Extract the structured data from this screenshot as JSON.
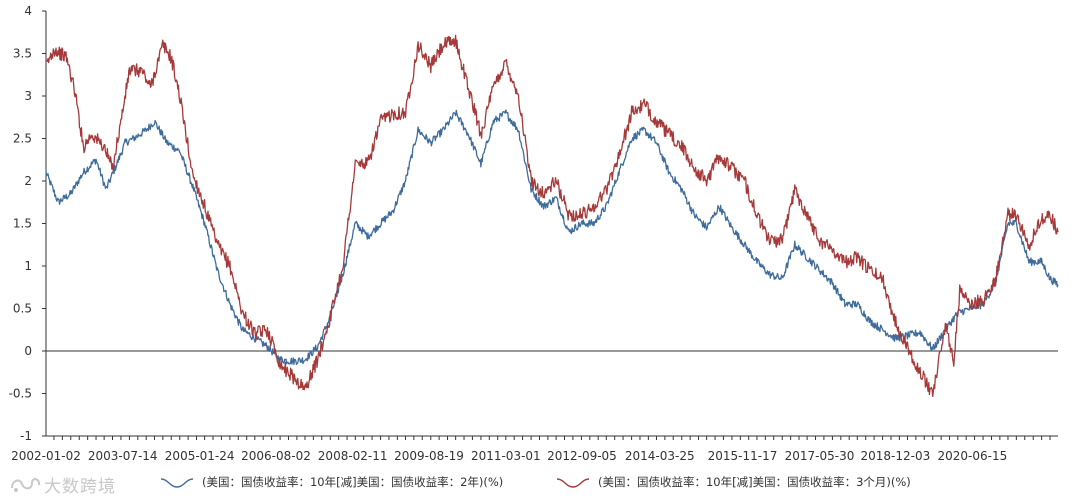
{
  "chart_data": {
    "type": "line",
    "title": "",
    "xlabel": "",
    "ylabel": "",
    "ylim": [
      -1,
      4
    ],
    "yticks": [
      -1,
      -0.5,
      0,
      0.5,
      1,
      1.5,
      2,
      2.5,
      3,
      3.5,
      4
    ],
    "ytick_labels": [
      "-1",
      "-0.5",
      "0",
      "0.5",
      "1",
      "1.5",
      "2",
      "2.5",
      "3",
      "3.5",
      "4"
    ],
    "xlim": [
      "2002-01-02",
      "2022-02-28"
    ],
    "x_tick_labels": [
      "2002-01-02",
      "2003-07-14",
      "2005-01-24",
      "2006-08-02",
      "2008-02-11",
      "2009-08-19",
      "2011-03-01",
      "2012-09-05",
      "2014-03-25",
      "2015-11-17",
      "2017-05-30",
      "2018-12-03",
      "2020-06-15"
    ],
    "zero_line": true,
    "series": [
      {
        "name": "(美国：国债收益率：10年[减]美国：国债收益率：2年)(%)",
        "color": "#3e6c9c",
        "points": [
          [
            "2002-01-02",
            2.1
          ],
          [
            "2002-04-01",
            1.75
          ],
          [
            "2002-07-01",
            1.85
          ],
          [
            "2002-10-01",
            2.1
          ],
          [
            "2003-01-01",
            2.25
          ],
          [
            "2003-03-15",
            1.9
          ],
          [
            "2003-06-01",
            2.2
          ],
          [
            "2003-08-01",
            2.45
          ],
          [
            "2003-10-01",
            2.5
          ],
          [
            "2004-01-01",
            2.6
          ],
          [
            "2004-03-01",
            2.7
          ],
          [
            "2004-06-01",
            2.45
          ],
          [
            "2004-09-01",
            2.35
          ],
          [
            "2004-12-01",
            1.95
          ],
          [
            "2005-03-01",
            1.5
          ],
          [
            "2005-06-01",
            0.95
          ],
          [
            "2005-09-01",
            0.55
          ],
          [
            "2005-12-01",
            0.25
          ],
          [
            "2006-03-01",
            0.15
          ],
          [
            "2006-06-01",
            0.05
          ],
          [
            "2006-09-01",
            -0.1
          ],
          [
            "2006-12-01",
            -0.12
          ],
          [
            "2007-03-01",
            -0.1
          ],
          [
            "2007-06-01",
            0.05
          ],
          [
            "2007-09-01",
            0.4
          ],
          [
            "2007-12-01",
            0.9
          ],
          [
            "2008-03-01",
            1.5
          ],
          [
            "2008-06-01",
            1.35
          ],
          [
            "2008-09-01",
            1.5
          ],
          [
            "2008-12-01",
            1.65
          ],
          [
            "2009-03-01",
            2.0
          ],
          [
            "2009-06-01",
            2.6
          ],
          [
            "2009-09-01",
            2.45
          ],
          [
            "2009-12-01",
            2.6
          ],
          [
            "2010-03-01",
            2.8
          ],
          [
            "2010-06-01",
            2.55
          ],
          [
            "2010-09-01",
            2.2
          ],
          [
            "2010-12-01",
            2.7
          ],
          [
            "2011-03-01",
            2.8
          ],
          [
            "2011-06-01",
            2.6
          ],
          [
            "2011-09-01",
            1.9
          ],
          [
            "2011-12-01",
            1.7
          ],
          [
            "2012-03-01",
            1.8
          ],
          [
            "2012-06-01",
            1.4
          ],
          [
            "2012-09-01",
            1.5
          ],
          [
            "2012-12-01",
            1.5
          ],
          [
            "2013-03-01",
            1.7
          ],
          [
            "2013-06-01",
            2.1
          ],
          [
            "2013-09-01",
            2.5
          ],
          [
            "2013-12-01",
            2.6
          ],
          [
            "2014-03-01",
            2.45
          ],
          [
            "2014-06-01",
            2.1
          ],
          [
            "2014-09-01",
            1.9
          ],
          [
            "2014-12-01",
            1.6
          ],
          [
            "2015-03-01",
            1.45
          ],
          [
            "2015-06-01",
            1.7
          ],
          [
            "2015-09-01",
            1.45
          ],
          [
            "2015-12-01",
            1.25
          ],
          [
            "2016-03-01",
            1.05
          ],
          [
            "2016-06-01",
            0.9
          ],
          [
            "2016-09-01",
            0.85
          ],
          [
            "2016-12-01",
            1.25
          ],
          [
            "2017-03-01",
            1.1
          ],
          [
            "2017-06-01",
            0.95
          ],
          [
            "2017-09-01",
            0.8
          ],
          [
            "2017-12-01",
            0.55
          ],
          [
            "2018-03-01",
            0.55
          ],
          [
            "2018-06-01",
            0.35
          ],
          [
            "2018-09-01",
            0.25
          ],
          [
            "2018-12-01",
            0.15
          ],
          [
            "2019-03-01",
            0.18
          ],
          [
            "2019-06-01",
            0.22
          ],
          [
            "2019-09-01",
            0.02
          ],
          [
            "2019-12-01",
            0.25
          ],
          [
            "2020-03-01",
            0.45
          ],
          [
            "2020-06-01",
            0.5
          ],
          [
            "2020-09-01",
            0.55
          ],
          [
            "2020-12-01",
            0.8
          ],
          [
            "2021-03-01",
            1.5
          ],
          [
            "2021-05-01",
            1.5
          ],
          [
            "2021-08-01",
            1.05
          ],
          [
            "2021-11-01",
            1.05
          ],
          [
            "2022-01-01",
            0.85
          ],
          [
            "2022-02-28",
            0.78
          ]
        ]
      },
      {
        "name": "(美国：国债收益率：10年[减]美国：国债收益率：3个月)(%)",
        "color": "#a63a3a",
        "points": [
          [
            "2002-01-02",
            3.35
          ],
          [
            "2002-03-01",
            3.55
          ],
          [
            "2002-06-01",
            3.45
          ],
          [
            "2002-08-01",
            3.05
          ],
          [
            "2002-10-01",
            2.4
          ],
          [
            "2002-12-01",
            2.55
          ],
          [
            "2003-03-01",
            2.4
          ],
          [
            "2003-05-01",
            2.15
          ],
          [
            "2003-07-01",
            2.7
          ],
          [
            "2003-09-01",
            3.3
          ],
          [
            "2003-12-01",
            3.3
          ],
          [
            "2004-02-01",
            3.1
          ],
          [
            "2004-05-01",
            3.6
          ],
          [
            "2004-07-01",
            3.45
          ],
          [
            "2004-09-01",
            3.0
          ],
          [
            "2004-12-01",
            2.1
          ],
          [
            "2005-03-01",
            1.7
          ],
          [
            "2005-06-01",
            1.25
          ],
          [
            "2005-09-01",
            1.0
          ],
          [
            "2005-12-01",
            0.45
          ],
          [
            "2006-03-01",
            0.2
          ],
          [
            "2006-06-01",
            0.25
          ],
          [
            "2006-09-01",
            -0.15
          ],
          [
            "2006-12-01",
            -0.3
          ],
          [
            "2007-03-01",
            -0.45
          ],
          [
            "2007-06-01",
            -0.1
          ],
          [
            "2007-09-01",
            0.4
          ],
          [
            "2007-12-01",
            1.0
          ],
          [
            "2008-03-01",
            2.2
          ],
          [
            "2008-06-01",
            2.2
          ],
          [
            "2008-09-01",
            2.7
          ],
          [
            "2008-12-01",
            2.8
          ],
          [
            "2009-03-01",
            2.8
          ],
          [
            "2009-06-01",
            3.6
          ],
          [
            "2009-09-01",
            3.35
          ],
          [
            "2009-12-01",
            3.6
          ],
          [
            "2010-03-01",
            3.65
          ],
          [
            "2010-06-01",
            3.1
          ],
          [
            "2010-09-01",
            2.55
          ],
          [
            "2010-12-01",
            3.1
          ],
          [
            "2011-03-01",
            3.4
          ],
          [
            "2011-06-01",
            3.0
          ],
          [
            "2011-09-01",
            2.0
          ],
          [
            "2011-12-01",
            1.85
          ],
          [
            "2012-03-01",
            2.0
          ],
          [
            "2012-06-01",
            1.6
          ],
          [
            "2012-09-01",
            1.6
          ],
          [
            "2012-12-01",
            1.7
          ],
          [
            "2013-03-01",
            1.9
          ],
          [
            "2013-06-01",
            2.3
          ],
          [
            "2013-09-01",
            2.8
          ],
          [
            "2013-12-01",
            2.9
          ],
          [
            "2014-03-01",
            2.7
          ],
          [
            "2014-06-01",
            2.55
          ],
          [
            "2014-09-01",
            2.4
          ],
          [
            "2014-12-01",
            2.15
          ],
          [
            "2015-03-01",
            2.0
          ],
          [
            "2015-06-01",
            2.3
          ],
          [
            "2015-09-01",
            2.15
          ],
          [
            "2015-12-01",
            2.0
          ],
          [
            "2016-03-01",
            1.6
          ],
          [
            "2016-06-01",
            1.3
          ],
          [
            "2016-09-01",
            1.3
          ],
          [
            "2016-12-01",
            1.9
          ],
          [
            "2017-03-01",
            1.6
          ],
          [
            "2017-06-01",
            1.3
          ],
          [
            "2017-09-01",
            1.2
          ],
          [
            "2017-12-01",
            1.05
          ],
          [
            "2018-03-01",
            1.1
          ],
          [
            "2018-06-01",
            0.95
          ],
          [
            "2018-09-01",
            0.85
          ],
          [
            "2018-12-01",
            0.35
          ],
          [
            "2019-03-01",
            0.05
          ],
          [
            "2019-06-01",
            -0.25
          ],
          [
            "2019-09-01",
            -0.5
          ],
          [
            "2019-12-01",
            0.3
          ],
          [
            "2020-02-01",
            -0.1
          ],
          [
            "2020-03-15",
            0.7
          ],
          [
            "2020-06-01",
            0.55
          ],
          [
            "2020-09-01",
            0.6
          ],
          [
            "2020-12-01",
            0.85
          ],
          [
            "2021-03-01",
            1.6
          ],
          [
            "2021-05-01",
            1.6
          ],
          [
            "2021-08-01",
            1.25
          ],
          [
            "2021-11-01",
            1.55
          ],
          [
            "2022-01-01",
            1.6
          ],
          [
            "2022-02-28",
            1.4
          ]
        ]
      }
    ]
  },
  "legend": {
    "items": [
      {
        "label": "(美国：国债收益率：10年[减]美国：国债收益率：2年)(%)"
      },
      {
        "label": "(美国：国债收益率：10年[减]美国：国债收益率：3个月)(%)"
      }
    ]
  },
  "watermark": {
    "text": "大数跨境"
  }
}
